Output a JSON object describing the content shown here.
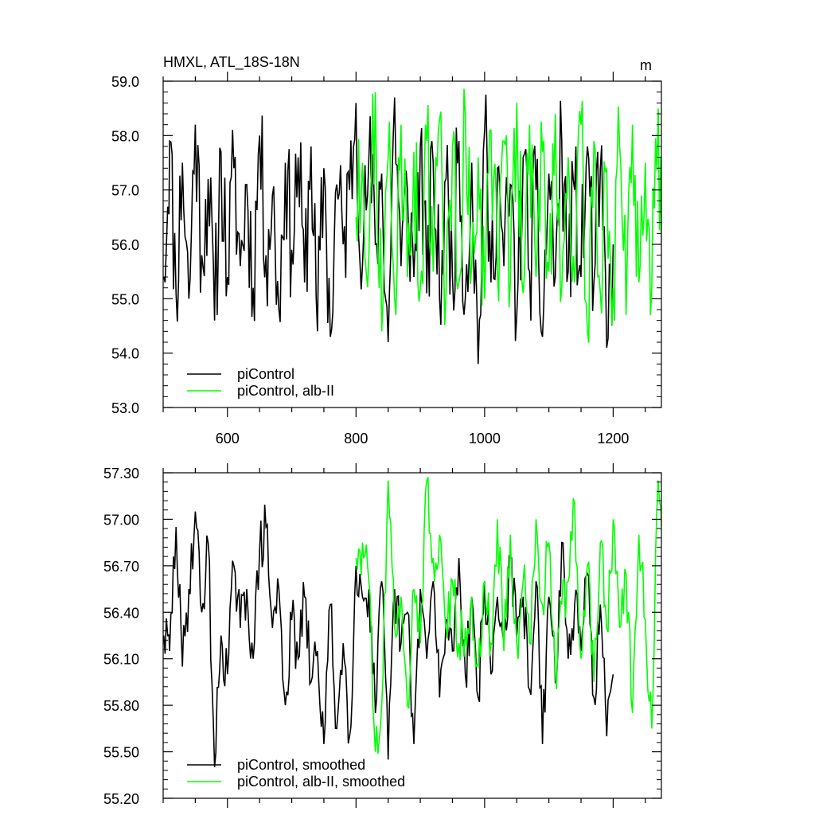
{
  "chart_data": [
    {
      "type": "line",
      "title": "HMXL, ATL_18S-18N",
      "units": "m",
      "xlim": [
        500,
        1275
      ],
      "ylim": [
        53.0,
        59.0
      ],
      "xticks": [
        600,
        800,
        1000,
        1200
      ],
      "xtick_labels": [
        "600",
        "800",
        "1000",
        "1200"
      ],
      "yticks": [
        53.0,
        54.0,
        55.0,
        56.0,
        57.0,
        58.0,
        59.0
      ],
      "ytick_labels": [
        "53.0",
        "54.0",
        "55.0",
        "56.0",
        "57.0",
        "58.0",
        "59.0"
      ],
      "grid": false,
      "legend_position": "bottom-left",
      "series": [
        {
          "name": "piControl",
          "color": "#000000",
          "x_start": 501,
          "x_end": 1201,
          "mean": 56.3,
          "range": [
            53.75,
            58.7
          ],
          "n_points": 701,
          "x": [
            501,
            510,
            520,
            530,
            540,
            550,
            560,
            570,
            580,
            590,
            600,
            610,
            620,
            630,
            640,
            650,
            660,
            670,
            680,
            690,
            700,
            710,
            720,
            730,
            740,
            750,
            760,
            770,
            780,
            790,
            800,
            810,
            820,
            830,
            840,
            850,
            860,
            870,
            880,
            890,
            900,
            910,
            920,
            930,
            940,
            950,
            960,
            970,
            980,
            990,
            1000,
            1010,
            1020,
            1030,
            1040,
            1050,
            1060,
            1070,
            1080,
            1090,
            1100,
            1110,
            1120,
            1130,
            1140,
            1150,
            1160,
            1170,
            1180,
            1190,
            1200
          ],
          "y": [
            55.4,
            57.9,
            55.1,
            57.5,
            55.0,
            58.2,
            55.8,
            57.2,
            54.6,
            57.7,
            55.4,
            57.4,
            55.6,
            57.1,
            55.2,
            58.0,
            55.8,
            56.9,
            54.8,
            57.5,
            55.9,
            57.6,
            55.3,
            57.8,
            54.4,
            57.4,
            54.3,
            57.1,
            56.0,
            57.0,
            58.6,
            55.6,
            57.6,
            56.0,
            57.3,
            54.2,
            58.7,
            55.6,
            57.0,
            55.4,
            57.8,
            55.1,
            57.5,
            55.0,
            57.2,
            55.4,
            57.9,
            55.0,
            57.5,
            53.8,
            58.1,
            55.3,
            57.4,
            55.6,
            57.1,
            54.7,
            57.6,
            55.5,
            57.0,
            54.3,
            57.3,
            55.4,
            57.9,
            55.5,
            57.0,
            55.4,
            57.8,
            55.3,
            57.4,
            54.1,
            56.0
          ]
        },
        {
          "name": "piControl, alb-II",
          "color": "#00ff00",
          "x_start": 800,
          "x_end": 1275,
          "mean": 56.35,
          "range": [
            54.35,
            58.8
          ],
          "n_points": 476,
          "x": [
            800,
            810,
            820,
            830,
            840,
            850,
            860,
            870,
            880,
            890,
            900,
            910,
            920,
            930,
            940,
            950,
            960,
            970,
            980,
            990,
            1000,
            1010,
            1020,
            1030,
            1040,
            1050,
            1060,
            1070,
            1080,
            1090,
            1100,
            1110,
            1120,
            1130,
            1140,
            1150,
            1160,
            1170,
            1180,
            1190,
            1200,
            1210,
            1220,
            1230,
            1240,
            1250,
            1260,
            1270,
            1275
          ],
          "y": [
            56.5,
            57.5,
            55.8,
            58.8,
            54.4,
            57.6,
            55.0,
            58.2,
            55.4,
            57.7,
            55.2,
            57.9,
            55.5,
            58.3,
            55.1,
            57.8,
            55.3,
            58.4,
            55.6,
            57.6,
            55.0,
            58.1,
            55.5,
            57.9,
            55.3,
            58.6,
            55.1,
            58.2,
            55.4,
            57.7,
            55.5,
            58.4,
            55.2,
            57.6,
            55.3,
            58.2,
            54.4,
            57.9,
            55.1,
            57.4,
            55.2,
            57.8,
            54.7,
            58.2,
            55.3,
            57.5,
            55.2,
            58.5,
            56.0
          ]
        }
      ]
    },
    {
      "type": "line",
      "title": "",
      "xlim": [
        500,
        1275
      ],
      "ylim": [
        55.2,
        57.3
      ],
      "xticks": [
        600,
        800,
        1000,
        1200
      ],
      "xtick_labels": [],
      "yticks": [
        55.2,
        55.5,
        55.8,
        56.1,
        56.4,
        56.7,
        57.0,
        57.3
      ],
      "ytick_labels": [
        "55.20",
        "55.50",
        "55.80",
        "56.10",
        "56.40",
        "56.70",
        "57.00",
        "57.30"
      ],
      "grid": false,
      "legend_position": "bottom-left",
      "series": [
        {
          "name": "piControl, smoothed",
          "color": "#000000",
          "x": [
            501,
            510,
            520,
            530,
            540,
            550,
            560,
            570,
            580,
            590,
            600,
            610,
            620,
            630,
            640,
            650,
            660,
            670,
            680,
            690,
            700,
            710,
            720,
            730,
            740,
            750,
            760,
            770,
            780,
            790,
            800,
            810,
            820,
            830,
            840,
            850,
            860,
            870,
            880,
            890,
            900,
            910,
            920,
            930,
            940,
            950,
            960,
            970,
            980,
            990,
            1000,
            1010,
            1020,
            1030,
            1040,
            1050,
            1060,
            1070,
            1080,
            1090,
            1100,
            1110,
            1120,
            1130,
            1140,
            1150,
            1160,
            1170,
            1180,
            1190,
            1200
          ],
          "y": [
            56.25,
            56.15,
            56.95,
            56.05,
            56.55,
            57.05,
            56.4,
            56.85,
            55.4,
            56.25,
            56.0,
            56.7,
            56.3,
            56.55,
            56.1,
            56.8,
            56.95,
            56.3,
            56.55,
            55.8,
            56.35,
            56.1,
            56.5,
            55.95,
            56.15,
            55.55,
            56.45,
            55.65,
            56.2,
            55.6,
            56.7,
            56.5,
            56.55,
            55.75,
            56.6,
            55.45,
            56.55,
            56.2,
            56.4,
            55.55,
            56.55,
            56.1,
            56.6,
            55.85,
            56.35,
            56.15,
            56.75,
            56.0,
            56.5,
            55.85,
            56.6,
            56.0,
            56.5,
            56.2,
            56.75,
            56.25,
            56.5,
            55.9,
            56.6,
            55.55,
            56.5,
            55.95,
            56.85,
            56.1,
            56.45,
            56.15,
            56.65,
            55.85,
            56.45,
            55.6,
            56.0
          ]
        },
        {
          "name": "piControl, alb-II, smoothed",
          "color": "#00ff00",
          "x": [
            800,
            810,
            820,
            830,
            840,
            850,
            860,
            870,
            880,
            890,
            900,
            910,
            920,
            930,
            940,
            950,
            960,
            970,
            980,
            990,
            1000,
            1010,
            1020,
            1030,
            1040,
            1050,
            1060,
            1070,
            1080,
            1090,
            1100,
            1110,
            1120,
            1130,
            1140,
            1150,
            1160,
            1170,
            1180,
            1190,
            1200,
            1210,
            1220,
            1230,
            1240,
            1250,
            1260,
            1270,
            1275
          ],
          "y": [
            56.75,
            56.85,
            56.6,
            55.5,
            55.8,
            57.25,
            56.3,
            56.5,
            55.8,
            56.55,
            56.2,
            57.25,
            56.75,
            56.9,
            56.3,
            56.6,
            56.2,
            56.3,
            56.5,
            56.05,
            56.6,
            56.2,
            57.0,
            56.15,
            56.9,
            56.2,
            56.6,
            56.2,
            57.0,
            56.45,
            56.85,
            56.0,
            56.45,
            56.6,
            57.1,
            56.1,
            56.7,
            55.95,
            56.85,
            56.3,
            57.0,
            56.3,
            56.65,
            55.75,
            56.9,
            56.35,
            55.65,
            57.25,
            56.95
          ]
        }
      ]
    }
  ]
}
